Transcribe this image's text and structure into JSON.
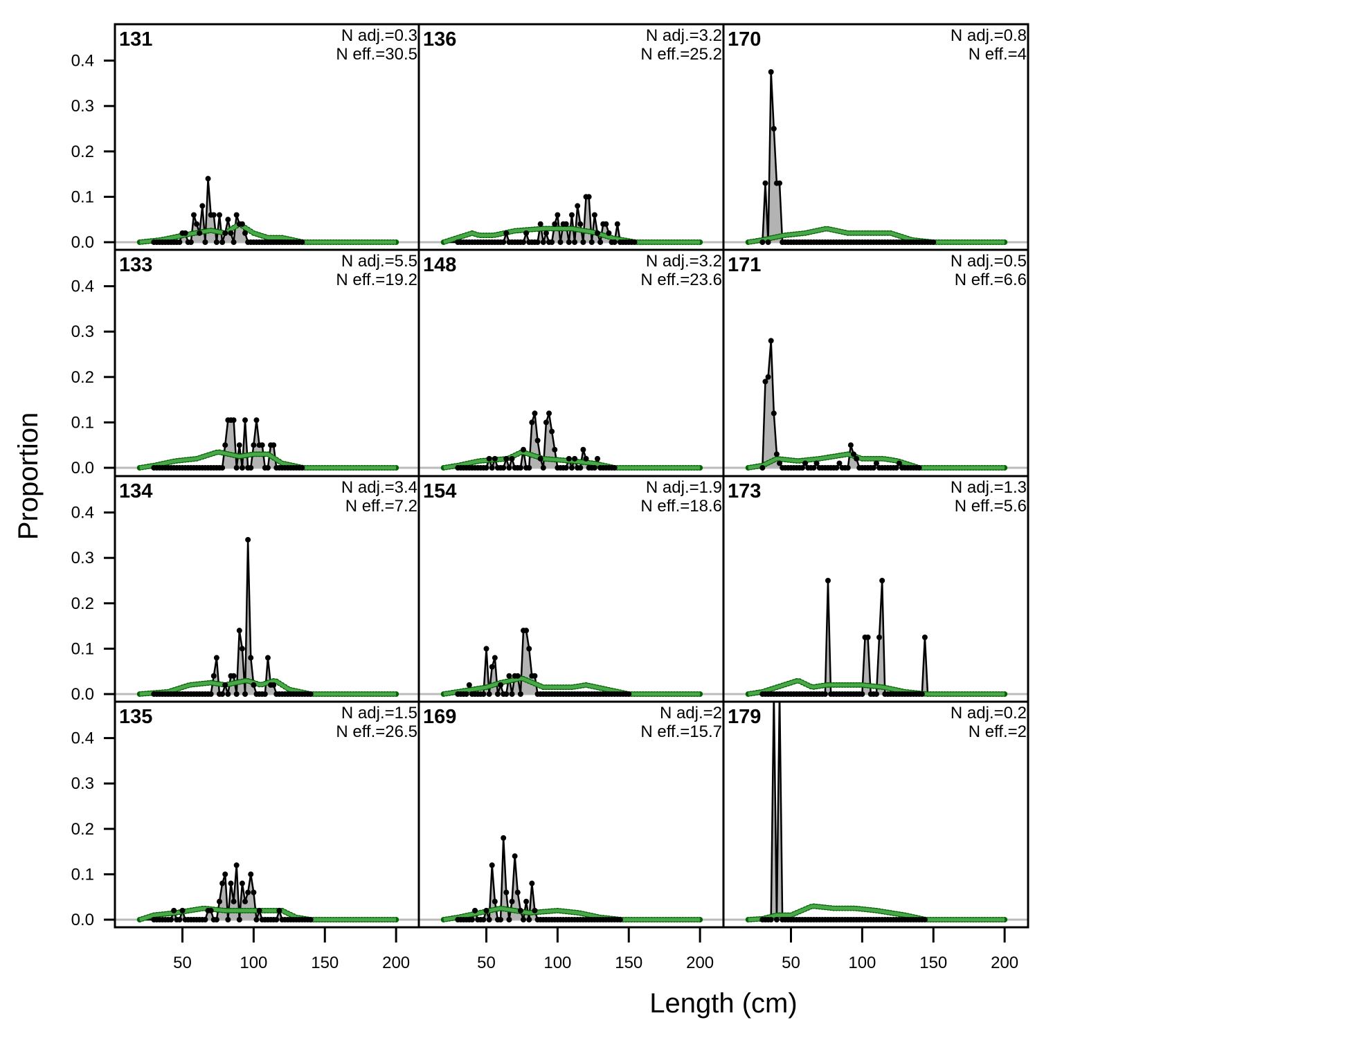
{
  "chart_data": {
    "type": "line",
    "xlabel": "Length (cm)",
    "ylabel": "Proportion",
    "xlim": [
      20,
      200
    ],
    "ylim": [
      0,
      0.48
    ],
    "x_step": 2,
    "xticks": [
      "50",
      "100",
      "150",
      "200"
    ],
    "xtick_values": [
      50,
      100,
      150,
      200
    ],
    "yticks": [
      "0.0",
      "0.1",
      "0.2",
      "0.3",
      "0.4"
    ],
    "ytick_values": [
      0,
      0.1,
      0.2,
      0.3,
      0.4
    ],
    "colors": {
      "observed_fill": "#b3b3b3",
      "observed_line": "#000000",
      "expected_line": "#4aa84a",
      "expected_points": "#006400",
      "zero_line": "#bbbbbb"
    },
    "panels": [
      {
        "id": "131",
        "n_adj": "N adj.=0.3",
        "n_eff": "N eff.=30.5",
        "observed": [
          [
            50,
            0.02
          ],
          [
            52,
            0.02
          ],
          [
            58,
            0.06
          ],
          [
            60,
            0.04
          ],
          [
            62,
            0.02
          ],
          [
            64,
            0.08
          ],
          [
            68,
            0.14
          ],
          [
            70,
            0.06
          ],
          [
            72,
            0.06
          ],
          [
            76,
            0.06
          ],
          [
            80,
            0.02
          ],
          [
            82,
            0.05
          ],
          [
            84,
            0.02
          ],
          [
            88,
            0.06
          ],
          [
            90,
            0.04
          ],
          [
            92,
            0.04
          ],
          [
            94,
            0.02
          ]
        ],
        "expected": [
          [
            20,
            0
          ],
          [
            35,
            0.005
          ],
          [
            55,
            0.018
          ],
          [
            70,
            0.026
          ],
          [
            80,
            0.02
          ],
          [
            90,
            0.04
          ],
          [
            100,
            0.02
          ],
          [
            110,
            0.01
          ],
          [
            120,
            0.01
          ],
          [
            135,
            0
          ]
        ]
      },
      {
        "id": "136",
        "n_adj": "N adj.=3.2",
        "n_eff": "N eff.=25.2",
        "observed": [
          [
            64,
            0.02
          ],
          [
            78,
            0.02
          ],
          [
            88,
            0.04
          ],
          [
            92,
            0.02
          ],
          [
            98,
            0.04
          ],
          [
            100,
            0.06
          ],
          [
            104,
            0.04
          ],
          [
            106,
            0.04
          ],
          [
            110,
            0.06
          ],
          [
            114,
            0.08
          ],
          [
            116,
            0.04
          ],
          [
            120,
            0.1
          ],
          [
            122,
            0.1
          ],
          [
            126,
            0.06
          ],
          [
            128,
            0.02
          ],
          [
            132,
            0.04
          ],
          [
            134,
            0.04
          ],
          [
            136,
            0.02
          ],
          [
            142,
            0.04
          ]
        ],
        "expected": [
          [
            20,
            0
          ],
          [
            30,
            0.01
          ],
          [
            40,
            0.02
          ],
          [
            45,
            0.015
          ],
          [
            55,
            0.015
          ],
          [
            70,
            0.025
          ],
          [
            90,
            0.03
          ],
          [
            110,
            0.03
          ],
          [
            125,
            0.022
          ],
          [
            140,
            0.008
          ],
          [
            155,
            0
          ]
        ]
      },
      {
        "id": "170",
        "n_adj": "N adj.=0.8",
        "n_eff": "N eff.=4",
        "observed": [
          [
            32,
            0.13
          ],
          [
            36,
            0.375
          ],
          [
            38,
            0.25
          ],
          [
            40,
            0.13
          ],
          [
            42,
            0.13
          ]
        ],
        "expected": [
          [
            20,
            0
          ],
          [
            30,
            0.005
          ],
          [
            45,
            0.015
          ],
          [
            60,
            0.02
          ],
          [
            75,
            0.03
          ],
          [
            90,
            0.02
          ],
          [
            110,
            0.02
          ],
          [
            120,
            0.02
          ],
          [
            135,
            0.005
          ],
          [
            150,
            0
          ]
        ]
      },
      {
        "id": "133",
        "n_adj": "N adj.=5.5",
        "n_eff": "N eff.=19.2",
        "observed": [
          [
            80,
            0.05
          ],
          [
            82,
            0.105
          ],
          [
            84,
            0.105
          ],
          [
            86,
            0.105
          ],
          [
            90,
            0.05
          ],
          [
            94,
            0.105
          ],
          [
            100,
            0.05
          ],
          [
            102,
            0.105
          ],
          [
            104,
            0.05
          ],
          [
            106,
            0.05
          ],
          [
            112,
            0.05
          ],
          [
            114,
            0.05
          ]
        ],
        "expected": [
          [
            20,
            0
          ],
          [
            30,
            0.005
          ],
          [
            45,
            0.015
          ],
          [
            60,
            0.02
          ],
          [
            75,
            0.035
          ],
          [
            90,
            0.025
          ],
          [
            100,
            0.03
          ],
          [
            110,
            0.03
          ],
          [
            120,
            0.01
          ],
          [
            135,
            0
          ]
        ]
      },
      {
        "id": "148",
        "n_adj": "N adj.=3.2",
        "n_eff": "N eff.=23.6",
        "observed": [
          [
            52,
            0.02
          ],
          [
            56,
            0.02
          ],
          [
            64,
            0.02
          ],
          [
            68,
            0.02
          ],
          [
            76,
            0.04
          ],
          [
            82,
            0.1
          ],
          [
            84,
            0.12
          ],
          [
            86,
            0.06
          ],
          [
            88,
            0.02
          ],
          [
            92,
            0.1
          ],
          [
            94,
            0.12
          ],
          [
            96,
            0.08
          ],
          [
            98,
            0.04
          ],
          [
            108,
            0.02
          ],
          [
            112,
            0.02
          ],
          [
            118,
            0.04
          ],
          [
            120,
            0.02
          ],
          [
            128,
            0.02
          ]
        ],
        "expected": [
          [
            20,
            0
          ],
          [
            30,
            0.005
          ],
          [
            45,
            0.015
          ],
          [
            65,
            0.02
          ],
          [
            75,
            0.035
          ],
          [
            90,
            0.02
          ],
          [
            110,
            0.015
          ],
          [
            125,
            0.01
          ],
          [
            140,
            0
          ]
        ]
      },
      {
        "id": "171",
        "n_adj": "N adj.=0.5",
        "n_eff": "N eff.=6.6",
        "observed": [
          [
            32,
            0.19
          ],
          [
            34,
            0.2
          ],
          [
            36,
            0.28
          ],
          [
            38,
            0.12
          ],
          [
            40,
            0.03
          ],
          [
            42,
            0.01
          ],
          [
            60,
            0.01
          ],
          [
            68,
            0.01
          ],
          [
            84,
            0.01
          ],
          [
            92,
            0.05
          ],
          [
            94,
            0.03
          ],
          [
            96,
            0.02
          ],
          [
            110,
            0.01
          ],
          [
            126,
            0.01
          ]
        ],
        "expected": [
          [
            20,
            0
          ],
          [
            30,
            0.005
          ],
          [
            40,
            0.02
          ],
          [
            55,
            0.015
          ],
          [
            70,
            0.02
          ],
          [
            90,
            0.03
          ],
          [
            100,
            0.02
          ],
          [
            115,
            0.02
          ],
          [
            125,
            0.015
          ],
          [
            140,
            0
          ]
        ]
      },
      {
        "id": "134",
        "n_adj": "N adj.=3.4",
        "n_eff": "N eff.=7.2",
        "observed": [
          [
            72,
            0.04
          ],
          [
            74,
            0.08
          ],
          [
            80,
            0.02
          ],
          [
            84,
            0.04
          ],
          [
            86,
            0.04
          ],
          [
            90,
            0.14
          ],
          [
            92,
            0.1
          ],
          [
            96,
            0.34
          ],
          [
            98,
            0.08
          ],
          [
            100,
            0.02
          ],
          [
            110,
            0.08
          ],
          [
            112,
            0.02
          ],
          [
            114,
            0.02
          ]
        ],
        "expected": [
          [
            20,
            0
          ],
          [
            40,
            0.005
          ],
          [
            55,
            0.02
          ],
          [
            70,
            0.025
          ],
          [
            80,
            0.02
          ],
          [
            95,
            0.03
          ],
          [
            105,
            0.02
          ],
          [
            115,
            0.03
          ],
          [
            125,
            0.01
          ],
          [
            140,
            0
          ]
        ]
      },
      {
        "id": "154",
        "n_adj": "N adj.=1.9",
        "n_eff": "N eff.=18.6",
        "observed": [
          [
            38,
            0.02
          ],
          [
            50,
            0.1
          ],
          [
            54,
            0.06
          ],
          [
            56,
            0.08
          ],
          [
            60,
            0.02
          ],
          [
            66,
            0.04
          ],
          [
            70,
            0.04
          ],
          [
            72,
            0.04
          ],
          [
            76,
            0.14
          ],
          [
            78,
            0.14
          ],
          [
            80,
            0.1
          ],
          [
            82,
            0.04
          ],
          [
            84,
            0.04
          ]
        ],
        "expected": [
          [
            20,
            0
          ],
          [
            30,
            0.005
          ],
          [
            50,
            0.015
          ],
          [
            60,
            0.025
          ],
          [
            75,
            0.035
          ],
          [
            90,
            0.015
          ],
          [
            110,
            0.015
          ],
          [
            120,
            0.02
          ],
          [
            135,
            0.01
          ],
          [
            150,
            0
          ]
        ]
      },
      {
        "id": "173",
        "n_adj": "N adj.=1.3",
        "n_eff": "N eff.=5.6",
        "observed": [
          [
            76,
            0.25
          ],
          [
            102,
            0.125
          ],
          [
            104,
            0.125
          ],
          [
            112,
            0.125
          ],
          [
            114,
            0.25
          ],
          [
            144,
            0.125
          ]
        ],
        "expected": [
          [
            20,
            0
          ],
          [
            30,
            0.005
          ],
          [
            45,
            0.02
          ],
          [
            55,
            0.03
          ],
          [
            65,
            0.015
          ],
          [
            75,
            0.02
          ],
          [
            100,
            0.02
          ],
          [
            115,
            0.015
          ],
          [
            130,
            0.005
          ],
          [
            145,
            0
          ]
        ]
      },
      {
        "id": "135",
        "n_adj": "N adj.=1.5",
        "n_eff": "N eff.=26.5",
        "observed": [
          [
            44,
            0.02
          ],
          [
            50,
            0.02
          ],
          [
            68,
            0.02
          ],
          [
            70,
            0.02
          ],
          [
            76,
            0.04
          ],
          [
            78,
            0.08
          ],
          [
            80,
            0.1
          ],
          [
            84,
            0.08
          ],
          [
            86,
            0.04
          ],
          [
            88,
            0.12
          ],
          [
            92,
            0.08
          ],
          [
            94,
            0.04
          ],
          [
            96,
            0.06
          ],
          [
            98,
            0.1
          ],
          [
            100,
            0.06
          ],
          [
            104,
            0.02
          ],
          [
            118,
            0.02
          ]
        ],
        "expected": [
          [
            20,
            0
          ],
          [
            30,
            0.01
          ],
          [
            45,
            0.015
          ],
          [
            65,
            0.025
          ],
          [
            80,
            0.02
          ],
          [
            95,
            0.02
          ],
          [
            110,
            0.02
          ],
          [
            120,
            0.02
          ],
          [
            130,
            0.005
          ],
          [
            140,
            0
          ]
        ]
      },
      {
        "id": "169",
        "n_adj": "N adj.=2",
        "n_eff": "N eff.=15.7",
        "observed": [
          [
            42,
            0.02
          ],
          [
            50,
            0.02
          ],
          [
            54,
            0.12
          ],
          [
            56,
            0.04
          ],
          [
            62,
            0.18
          ],
          [
            64,
            0.06
          ],
          [
            68,
            0.04
          ],
          [
            70,
            0.14
          ],
          [
            72,
            0.06
          ],
          [
            74,
            0.02
          ],
          [
            78,
            0.04
          ],
          [
            82,
            0.08
          ],
          [
            84,
            0.02
          ]
        ],
        "expected": [
          [
            20,
            0
          ],
          [
            30,
            0.005
          ],
          [
            45,
            0.015
          ],
          [
            60,
            0.025
          ],
          [
            80,
            0.015
          ],
          [
            100,
            0.02
          ],
          [
            115,
            0.015
          ],
          [
            130,
            0.005
          ],
          [
            145,
            0
          ]
        ]
      },
      {
        "id": "179",
        "n_adj": "N adj.=0.2",
        "n_eff": "N eff.=2",
        "observed": [
          [
            38,
            0.5
          ],
          [
            42,
            0.5
          ]
        ],
        "expected": [
          [
            20,
            0
          ],
          [
            30,
            0.002
          ],
          [
            40,
            0.01
          ],
          [
            50,
            0.01
          ],
          [
            65,
            0.03
          ],
          [
            80,
            0.025
          ],
          [
            95,
            0.025
          ],
          [
            110,
            0.02
          ],
          [
            130,
            0.01
          ],
          [
            145,
            0
          ]
        ]
      }
    ]
  }
}
